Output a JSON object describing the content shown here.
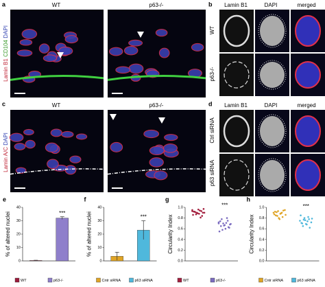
{
  "panels": {
    "a": {
      "label": "a",
      "left": "WT",
      "right": "p63-/-",
      "stain": [
        "Lamin B1",
        "CD104",
        "DAPI"
      ]
    },
    "b": {
      "label": "b",
      "columns": [
        "Lamin B1",
        "DAPI",
        "merged"
      ],
      "rows": [
        "WT",
        "p63-/-"
      ]
    },
    "c": {
      "label": "c",
      "left": "WT",
      "right": "p63-/-",
      "stain": [
        "Lamin A/C",
        "DAPI"
      ]
    },
    "d": {
      "label": "d",
      "columns": [
        "Lamin B1",
        "DAPI",
        "merged"
      ],
      "rows": [
        "Ctrl siRNA",
        "p63 siRNA"
      ]
    }
  },
  "chart_data": [
    {
      "type": "bar",
      "panel_label": "e",
      "ylabel": "% of altered nuclei",
      "categories": [
        "WT",
        "p63-/-"
      ],
      "values": [
        0.3,
        32
      ],
      "errors": [
        0.2,
        1
      ],
      "colors": [
        "#9b1c3c",
        "#8f7fcb"
      ],
      "annotation": "***",
      "ylim": [
        0,
        40
      ],
      "yticks": [
        0,
        10,
        20,
        30,
        40
      ]
    },
    {
      "type": "bar",
      "panel_label": "f",
      "ylabel": "% of altered nuclei",
      "categories": [
        "Cntr siRNA",
        "p63 siRNA"
      ],
      "values": [
        3.5,
        23
      ],
      "errors": [
        3,
        7
      ],
      "colors": [
        "#e0a526",
        "#4fb8dc"
      ],
      "annotation": "***",
      "ylim": [
        0,
        40
      ],
      "yticks": [
        0,
        10,
        20,
        30,
        40
      ]
    },
    {
      "type": "scatter",
      "panel_label": "g",
      "ylabel": "Circularity Index",
      "annotation": "***",
      "ylim": [
        0,
        1
      ],
      "yticks": [
        {
          "value": 0,
          "label": "0.0"
        },
        0.2,
        0.4,
        0.6,
        0.8,
        {
          "value": 1,
          "label": "1.0"
        }
      ],
      "series": [
        {
          "name": "WT",
          "color": "#a31f3e",
          "values": [
            0.95,
            0.92,
            0.9,
            0.88,
            0.93,
            0.97,
            0.86,
            0.91,
            0.89,
            0.94,
            0.84,
            0.9,
            0.92,
            0.87,
            0.96,
            0.81,
            0.9,
            0.93
          ]
        },
        {
          "name": "p63-/-",
          "color": "#7b6cc0",
          "values": [
            0.72,
            0.65,
            0.7,
            0.6,
            0.75,
            0.68,
            0.55,
            0.78,
            0.66,
            0.71,
            0.63,
            0.69,
            0.74,
            0.58,
            0.67,
            0.8,
            0.62,
            0.7
          ]
        }
      ]
    },
    {
      "type": "scatter",
      "panel_label": "h",
      "ylabel": "Circularity Index",
      "annotation": "***",
      "ylim": [
        0,
        1
      ],
      "yticks": [
        {
          "value": 0,
          "label": "0.0"
        },
        0.2,
        0.4,
        0.6,
        0.8,
        {
          "value": 1,
          "label": "1.0"
        }
      ],
      "series": [
        {
          "name": "Cntr siRNA",
          "color": "#e0a526",
          "values": [
            0.9,
            0.85,
            0.93,
            0.88,
            0.82,
            0.95,
            0.87,
            0.91,
            0.8,
            0.89,
            0.94,
            0.86,
            0.92,
            0.84,
            0.78,
            0.9
          ]
        },
        {
          "name": "p63 siRNA",
          "color": "#4fb8dc",
          "values": [
            0.75,
            0.7,
            0.8,
            0.68,
            0.78,
            0.72,
            0.85,
            0.65,
            0.76,
            0.74,
            0.62,
            0.79,
            0.71,
            0.77,
            0.69,
            0.82
          ]
        }
      ]
    }
  ]
}
